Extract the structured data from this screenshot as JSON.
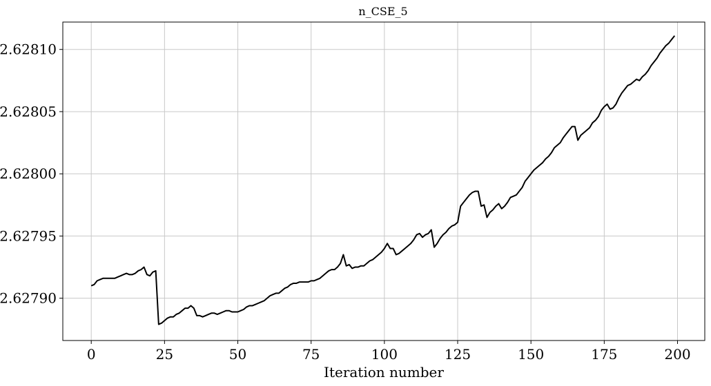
{
  "chart_data": {
    "type": "line",
    "title": "n_CSE_5",
    "xlabel": "Iteration number",
    "ylabel": "",
    "xlim": [
      -9.7,
      209.3
    ],
    "ylim": [
      2.627866,
      2.628122
    ],
    "xticks": [
      0,
      25,
      50,
      75,
      100,
      125,
      150,
      175,
      200
    ],
    "xtick_labels": [
      "0",
      "25",
      "50",
      "75",
      "100",
      "125",
      "150",
      "175",
      "200"
    ],
    "yticks": [
      2.6279,
      2.62795,
      2.628,
      2.62805,
      2.6281
    ],
    "ytick_labels": [
      "2.62790",
      "2.62795",
      "2.62800",
      "2.62805",
      "2.62810"
    ],
    "grid": true,
    "line_color": "#000000",
    "series": [
      {
        "x": [
          0,
          1,
          2,
          3,
          4,
          5,
          6,
          7,
          8,
          9,
          10,
          11,
          12,
          13,
          14,
          15,
          16,
          17,
          18,
          19,
          20,
          21,
          22,
          23,
          24,
          25,
          26,
          27,
          28,
          29,
          30,
          31,
          32,
          33,
          34,
          35,
          36,
          37,
          38,
          39,
          40,
          41,
          42,
          43,
          44,
          45,
          46,
          47,
          48,
          49,
          50,
          51,
          52,
          53,
          54,
          55,
          56,
          57,
          58,
          59,
          60,
          61,
          62,
          63,
          64,
          65,
          66,
          67,
          68,
          69,
          70,
          71,
          72,
          73,
          74,
          75,
          76,
          77,
          78,
          79,
          80,
          81,
          82,
          83,
          84,
          85,
          86,
          87,
          88,
          89,
          90,
          91,
          92,
          93,
          94,
          95,
          96,
          97,
          98,
          99,
          100,
          101,
          102,
          103,
          104,
          105,
          106,
          107,
          108,
          109,
          110,
          111,
          112,
          113,
          114,
          115,
          116,
          117,
          118,
          119,
          120,
          121,
          122,
          123,
          124,
          125,
          126,
          127,
          128,
          129,
          130,
          131,
          132,
          133,
          134,
          135,
          136,
          137,
          138,
          139,
          140,
          141,
          142,
          143,
          144,
          145,
          146,
          147,
          148,
          149,
          150,
          151,
          152,
          153,
          154,
          155,
          156,
          157,
          158,
          159,
          160,
          161,
          162,
          163,
          164,
          165,
          166,
          167,
          168,
          169,
          170,
          171,
          172,
          173,
          174,
          175,
          176,
          177,
          178,
          179,
          180,
          181,
          182,
          183,
          184,
          185,
          186,
          187,
          188,
          189,
          190,
          191,
          192,
          193,
          194,
          195,
          196,
          197,
          198,
          199
        ],
        "values": [
          2.62791,
          2.627911,
          2.627914,
          2.627915,
          2.627916,
          2.627916,
          2.627916,
          2.627916,
          2.627916,
          2.627917,
          2.627918,
          2.627919,
          2.62792,
          2.627919,
          2.627919,
          2.62792,
          2.627922,
          2.627923,
          2.627925,
          2.627919,
          2.627918,
          2.627921,
          2.627922,
          2.627879,
          2.62788,
          2.627882,
          2.627884,
          2.627885,
          2.627885,
          2.627887,
          2.627888,
          2.62789,
          2.627892,
          2.627892,
          2.627894,
          2.627892,
          2.627886,
          2.627886,
          2.627885,
          2.627886,
          2.627887,
          2.627888,
          2.627888,
          2.627887,
          2.627888,
          2.627889,
          2.62789,
          2.62789,
          2.627889,
          2.627889,
          2.627889,
          2.62789,
          2.627891,
          2.627893,
          2.627894,
          2.627894,
          2.627895,
          2.627896,
          2.627897,
          2.627898,
          2.6279,
          2.627902,
          2.627903,
          2.627904,
          2.627904,
          2.627906,
          2.627908,
          2.627909,
          2.627911,
          2.627912,
          2.627912,
          2.627913,
          2.627913,
          2.627913,
          2.627913,
          2.627914,
          2.627914,
          2.627915,
          2.627916,
          2.627918,
          2.62792,
          2.627922,
          2.627923,
          2.627923,
          2.627925,
          2.627928,
          2.627935,
          2.627926,
          2.627927,
          2.627924,
          2.627925,
          2.627925,
          2.627926,
          2.627926,
          2.627928,
          2.62793,
          2.627931,
          2.627933,
          2.627935,
          2.627937,
          2.62794,
          2.627944,
          2.62794,
          2.62794,
          2.627935,
          2.627936,
          2.627938,
          2.62794,
          2.627942,
          2.627944,
          2.627947,
          2.627951,
          2.627952,
          2.627949,
          2.627951,
          2.627952,
          2.627955,
          2.627941,
          2.627944,
          2.627948,
          2.627951,
          2.627953,
          2.627956,
          2.627958,
          2.627959,
          2.627961,
          2.627974,
          2.627977,
          2.62798,
          2.627983,
          2.627985,
          2.627986,
          2.627986,
          2.627974,
          2.627975,
          2.627965,
          2.627969,
          2.627971,
          2.627974,
          2.627976,
          2.627972,
          2.627974,
          2.627977,
          2.627981,
          2.627982,
          2.627983,
          2.627986,
          2.627989,
          2.627994,
          2.627997,
          2.628,
          2.628003,
          2.628005,
          2.628007,
          2.628009,
          2.628012,
          2.628014,
          2.628017,
          2.628021,
          2.628023,
          2.628025,
          2.628029,
          2.628032,
          2.628035,
          2.628038,
          2.628038,
          2.628027,
          2.628031,
          2.628033,
          2.628035,
          2.628037,
          2.628041,
          2.628043,
          2.628046,
          2.628051,
          2.628054,
          2.628056,
          2.628052,
          2.628053,
          2.628056,
          2.628061,
          2.628065,
          2.628068,
          2.628071,
          2.628072,
          2.628074,
          2.628076,
          2.628075,
          2.628078,
          2.62808,
          2.628083,
          2.628087,
          2.62809,
          2.628093,
          2.628097,
          2.6281,
          2.628103,
          2.628105,
          2.628108,
          2.628111
        ]
      }
    ]
  }
}
